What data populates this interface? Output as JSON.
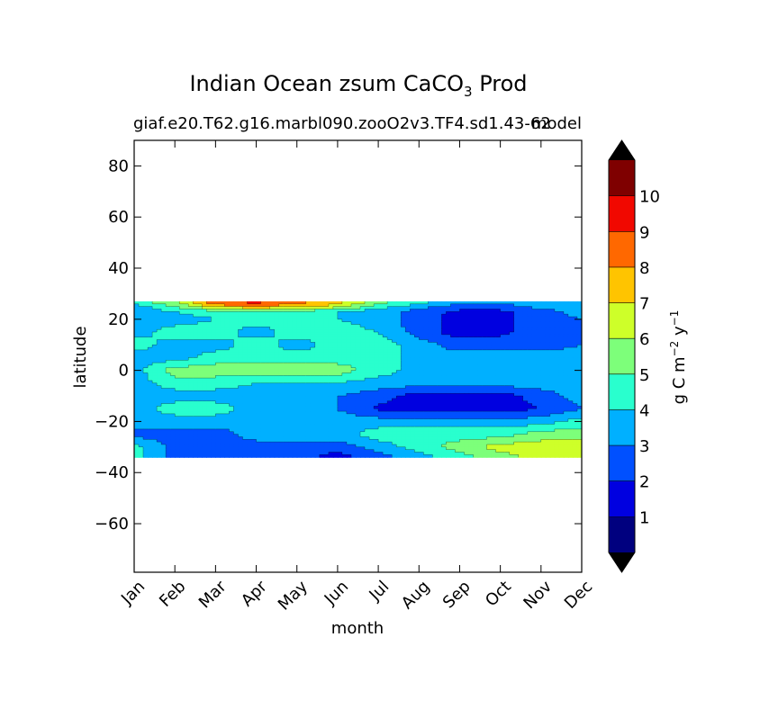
{
  "chart_data": {
    "type": "heatmap",
    "title": "Indian Ocean zsum CaCO",
    "title_subscript": "3",
    "title_suffix": " Prod",
    "subtitle_left": "giaf.e20.T62.g16.marbl090.zooO2v3.TF4.sd1.43-62",
    "subtitle_right": "model",
    "xlabel": "month",
    "ylabel": "latitude",
    "x_categories": [
      "Jan",
      "Feb",
      "Mar",
      "Apr",
      "May",
      "Jun",
      "Jul",
      "Aug",
      "Sep",
      "Oct",
      "Nov",
      "Dec"
    ],
    "y_ticks": [
      "80",
      "60",
      "40",
      "20",
      "0",
      "−20",
      "−40",
      "−60"
    ],
    "y_tick_values": [
      80,
      60,
      40,
      20,
      0,
      -20,
      -40,
      -60
    ],
    "ylim": [
      -79,
      90
    ],
    "data_lat_range": [
      -34,
      27
    ],
    "colorbar": {
      "label_main": "g C m",
      "label_exp1": "−2",
      "label_mid": " y",
      "label_exp2": "−1",
      "levels": [
        0,
        1,
        2,
        3,
        4,
        5,
        6,
        7,
        8,
        9,
        10,
        11
      ],
      "tick_labels": [
        "1",
        "2",
        "3",
        "4",
        "5",
        "6",
        "7",
        "8",
        "9",
        "10"
      ],
      "tick_values": [
        1,
        2,
        3,
        4,
        5,
        6,
        7,
        8,
        9,
        10
      ],
      "colors": [
        "#00007f",
        "#0000e0",
        "#0050ff",
        "#00b0ff",
        "#29ffce",
        "#7dff7a",
        "#ceff29",
        "#ffc400",
        "#ff6800",
        "#f10800",
        "#7f0000"
      ],
      "under_color": "#000000",
      "over_color": "#000000"
    },
    "latitudes": [
      27,
      25,
      23,
      20,
      15,
      10,
      5,
      0,
      -5,
      -10,
      -15,
      -20,
      -25,
      -30,
      -34
    ],
    "months": [
      1,
      2,
      3,
      4,
      5,
      6,
      7,
      8,
      9,
      10,
      11,
      12
    ],
    "values": [
      [
        4.5,
        6.0,
        9.0,
        9.5,
        8.5,
        7.5,
        5.5,
        4.5,
        3.5,
        3.5,
        3.5,
        3.5
      ],
      [
        3.5,
        5.0,
        7.5,
        8.0,
        7.5,
        6.5,
        4.5,
        3.5,
        2.5,
        2.5,
        3.5,
        3.5
      ],
      [
        3.5,
        4.0,
        4.5,
        4.5,
        4.5,
        4.0,
        3.5,
        2.5,
        1.8,
        1.8,
        2.5,
        3.5
      ],
      [
        3.5,
        3.5,
        4.0,
        4.5,
        4.5,
        4.0,
        3.5,
        2.5,
        1.5,
        1.8,
        2.5,
        3.0
      ],
      [
        3.5,
        4.5,
        4.5,
        3.5,
        4.5,
        4.5,
        4.0,
        2.5,
        1.5,
        1.8,
        2.5,
        2.5
      ],
      [
        4.5,
        3.5,
        3.5,
        4.5,
        3.5,
        4.5,
        4.5,
        3.5,
        2.5,
        2.5,
        2.5,
        3.0
      ],
      [
        3.5,
        3.5,
        4.5,
        4.5,
        4.5,
        4.5,
        4.5,
        3.5,
        3.5,
        3.5,
        3.5,
        3.5
      ],
      [
        3.5,
        5.5,
        5.5,
        5.5,
        5.5,
        5.5,
        4.5,
        3.5,
        3.5,
        3.5,
        3.5,
        3.5
      ],
      [
        3.5,
        4.5,
        4.5,
        4.0,
        4.0,
        4.0,
        3.5,
        3.5,
        3.5,
        3.5,
        3.5,
        3.5
      ],
      [
        3.5,
        3.5,
        3.5,
        3.5,
        3.5,
        3.0,
        2.5,
        1.5,
        1.5,
        1.5,
        2.5,
        3.5
      ],
      [
        3.5,
        4.5,
        4.5,
        3.5,
        3.5,
        3.0,
        1.8,
        1.5,
        1.5,
        1.5,
        2.0,
        3.0
      ],
      [
        3.5,
        3.5,
        3.5,
        3.5,
        3.5,
        3.5,
        3.5,
        3.5,
        3.5,
        3.5,
        3.5,
        4.5
      ],
      [
        2.5,
        2.5,
        2.5,
        3.5,
        3.5,
        3.5,
        4.5,
        4.5,
        4.5,
        4.5,
        5.5,
        5.5
      ],
      [
        4.5,
        2.5,
        2.5,
        2.5,
        2.5,
        2.5,
        3.5,
        4.5,
        5.5,
        6.5,
        6.5,
        6.5
      ],
      [
        4.5,
        2.5,
        2.5,
        2.5,
        2.5,
        1.5,
        2.5,
        3.5,
        4.5,
        5.5,
        6.5,
        6.5
      ]
    ]
  }
}
